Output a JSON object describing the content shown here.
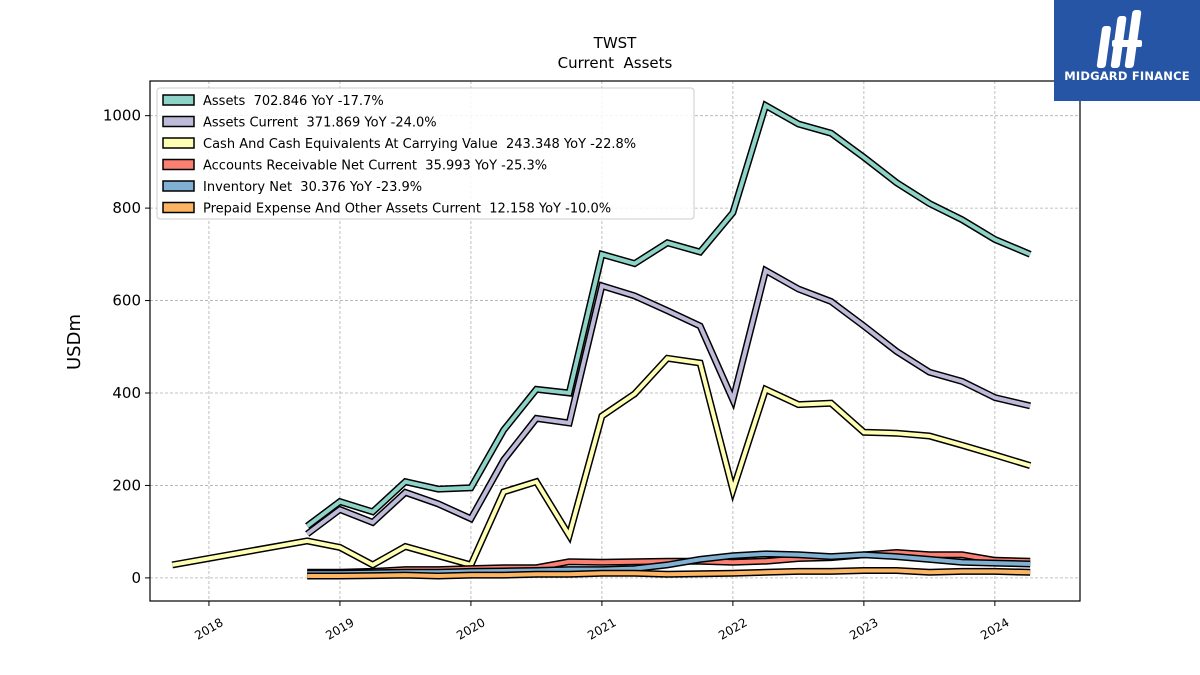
{
  "brand": {
    "name": "MIDGARD FINANCE",
    "bg_color": "#2755a6"
  },
  "chart_data": {
    "type": "line",
    "title": "TWST",
    "subtitle": "Current  Assets",
    "ylabel": "USDm",
    "xlabel": "",
    "xlim": [
      2017.55,
      2024.65
    ],
    "ylim": [
      -50,
      1075
    ],
    "yticks": [
      0,
      200,
      400,
      600,
      800,
      1000
    ],
    "xticks": [
      2018,
      2019,
      2020,
      2021,
      2022,
      2023,
      2024
    ],
    "grid": true,
    "legend_position": "top-left",
    "series": [
      {
        "name": "Assets",
        "legend": "Assets  702.846 YoY -17.7%",
        "color": "#8dd3c7",
        "x": [
          2018.75,
          2019.0,
          2019.25,
          2019.5,
          2019.75,
          2020.0,
          2020.25,
          2020.5,
          2020.75,
          2021.0,
          2021.25,
          2021.5,
          2021.75,
          2022.0,
          2022.25,
          2022.5,
          2022.75,
          2023.0,
          2023.25,
          2023.5,
          2023.75,
          2024.0,
          2024.27
        ],
        "y": [
          112,
          165,
          143,
          208,
          192,
          195,
          320,
          408,
          400,
          700,
          680,
          725,
          705,
          790,
          1022,
          982,
          962,
          910,
          855,
          810,
          775,
          732,
          700
        ]
      },
      {
        "name": "Assets Current",
        "legend": "Assets Current  371.869 YoY -24.0%",
        "color": "#bebada",
        "x": [
          2018.75,
          2019.0,
          2019.25,
          2019.5,
          2019.75,
          2020.0,
          2020.25,
          2020.5,
          2020.75,
          2021.0,
          2021.25,
          2021.5,
          2021.75,
          2022.0,
          2022.25,
          2022.5,
          2022.75,
          2023.0,
          2023.25,
          2023.5,
          2023.75,
          2024.0,
          2024.27
        ],
        "y": [
          95,
          148,
          120,
          185,
          160,
          128,
          255,
          345,
          335,
          632,
          610,
          578,
          545,
          385,
          665,
          625,
          598,
          545,
          490,
          445,
          425,
          390,
          372
        ]
      },
      {
        "name": "Cash And Cash Equivalents At Carrying Value",
        "legend": "Cash And Cash Equivalents At Carrying Value  243.348 YoY -22.8%",
        "color": "#ffffb3",
        "x": [
          2017.72,
          2018.75,
          2019.0,
          2019.25,
          2019.5,
          2019.75,
          2020.0,
          2020.25,
          2020.5,
          2020.75,
          2021.0,
          2021.25,
          2021.5,
          2021.75,
          2022.0,
          2022.25,
          2022.5,
          2022.75,
          2023.0,
          2023.25,
          2023.5,
          2023.75,
          2024.0,
          2024.27
        ],
        "y": [
          28,
          80,
          66,
          28,
          68,
          48,
          28,
          186,
          208,
          92,
          350,
          398,
          475,
          465,
          190,
          408,
          375,
          378,
          315,
          313,
          307,
          287,
          266,
          243
        ]
      },
      {
        "name": "Accounts Receivable Net Current",
        "legend": "Accounts Receivable Net Current  35.993 YoY -25.3%",
        "color": "#fb8072",
        "x": [
          2018.75,
          2019.0,
          2019.25,
          2019.5,
          2019.75,
          2020.0,
          2020.25,
          2020.5,
          2020.75,
          2021.0,
          2021.25,
          2021.5,
          2021.75,
          2022.0,
          2022.25,
          2022.5,
          2022.75,
          2023.0,
          2023.25,
          2023.5,
          2023.75,
          2024.0,
          2024.27
        ],
        "y": [
          12,
          12,
          14,
          18,
          18,
          20,
          22,
          22,
          35,
          34,
          35,
          36,
          36,
          34,
          36,
          42,
          44,
          50,
          55,
          50,
          50,
          38,
          36
        ]
      },
      {
        "name": "Inventory Net",
        "legend": "Inventory Net  30.376 YoY -23.9%",
        "color": "#80b1d3",
        "x": [
          2018.75,
          2019.0,
          2019.25,
          2019.5,
          2019.75,
          2020.0,
          2020.25,
          2020.5,
          2020.75,
          2021.0,
          2021.25,
          2021.5,
          2021.75,
          2022.0,
          2022.25,
          2022.5,
          2022.75,
          2023.0,
          2023.25,
          2023.5,
          2023.75,
          2024.0,
          2024.27
        ],
        "y": [
          10,
          10,
          11,
          12,
          12,
          14,
          15,
          16,
          18,
          18,
          20,
          28,
          40,
          48,
          52,
          50,
          46,
          50,
          46,
          40,
          34,
          32,
          30
        ]
      },
      {
        "name": "Prepaid Expense And Other Assets Current",
        "legend": "Prepaid Expense And Other Assets Current  12.158 YoY -10.0%",
        "color": "#fdb462",
        "x": [
          2018.75,
          2019.0,
          2019.25,
          2019.5,
          2019.75,
          2020.0,
          2020.25,
          2020.5,
          2020.75,
          2021.0,
          2021.25,
          2021.5,
          2021.75,
          2022.0,
          2022.25,
          2022.5,
          2022.75,
          2023.0,
          2023.25,
          2023.5,
          2023.75,
          2024.0,
          2024.27
        ],
        "y": [
          4,
          4,
          5,
          6,
          4,
          6,
          6,
          8,
          8,
          10,
          10,
          8,
          9,
          10,
          12,
          14,
          14,
          16,
          16,
          12,
          14,
          14,
          12
        ]
      }
    ]
  }
}
